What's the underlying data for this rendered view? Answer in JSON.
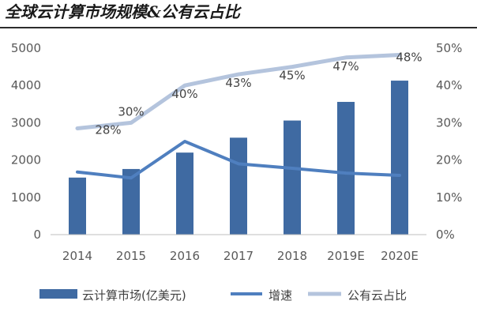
{
  "title": "全球云计算市场规模&公有云占比",
  "chart_data": {
    "type": "bar",
    "categories": [
      "2014",
      "2015",
      "2016",
      "2017",
      "2018",
      "2019E",
      "2020E"
    ],
    "y_left_lim": [
      0,
      5000
    ],
    "y_left_ticks": [
      "0",
      "1000",
      "2000",
      "3000",
      "4000",
      "5000"
    ],
    "y_right_lim": [
      0,
      0.5
    ],
    "y_right_ticks": [
      "0%",
      "10%",
      "20%",
      "30%",
      "40%",
      "50%"
    ],
    "grid": false,
    "legend_position": "bottom",
    "series": [
      {
        "name": "云计算市场(亿美元)",
        "type": "bar",
        "axis": "left",
        "values": [
          1530,
          1760,
          2200,
          2600,
          3060,
          3560,
          4130
        ],
        "color": "#3f6aa2"
      },
      {
        "name": "增速",
        "type": "line",
        "axis": "right",
        "values": [
          0.168,
          0.152,
          0.25,
          0.19,
          0.178,
          0.165,
          0.159
        ],
        "color": "#4f7fbf"
      },
      {
        "name": "公有云占比",
        "type": "line",
        "axis": "right",
        "values": [
          0.285,
          0.3,
          0.4,
          0.43,
          0.45,
          0.475,
          0.482
        ],
        "labels": [
          "28%",
          "30%",
          "40%",
          "43%",
          "45%",
          "47%",
          "48%"
        ],
        "color": "#b4c4dd"
      }
    ]
  }
}
